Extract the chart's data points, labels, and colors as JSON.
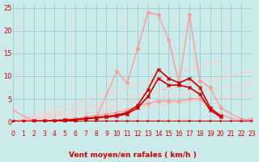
{
  "bg": "#cceaea",
  "grid_color": "#99cccc",
  "red_dark": "#cc0000",
  "red_mid": "#ff6666",
  "red_light": "#ffaaaa",
  "xlim": [
    0,
    23
  ],
  "ylim": [
    0,
    26
  ],
  "yticks": [
    0,
    5,
    10,
    15,
    20,
    25
  ],
  "xticks": [
    0,
    1,
    2,
    3,
    4,
    5,
    6,
    7,
    8,
    9,
    10,
    11,
    12,
    13,
    14,
    15,
    16,
    17,
    18,
    19,
    20,
    21,
    22,
    23
  ],
  "xlabel": "Vent moyen/en rafales ( km/h )",
  "series": [
    {
      "x": [
        0,
        23
      ],
      "y": [
        0,
        6.0
      ],
      "color": "#ffcccc",
      "lw": 0.9,
      "marker": "None",
      "ms": 0
    },
    {
      "x": [
        0,
        23
      ],
      "y": [
        0,
        8.5
      ],
      "color": "#ffcccc",
      "lw": 0.9,
      "marker": "None",
      "ms": 0
    },
    {
      "x": [
        0,
        23
      ],
      "y": [
        0,
        11.0
      ],
      "color": "#ffcccc",
      "lw": 0.9,
      "marker": "None",
      "ms": 0
    },
    {
      "x": [
        0,
        20
      ],
      "y": [
        0,
        13.5
      ],
      "color": "#ffcccc",
      "lw": 0.9,
      "marker": "None",
      "ms": 0
    },
    {
      "x": [
        0,
        1,
        2,
        3,
        4,
        5,
        6,
        7,
        8,
        9,
        10,
        11,
        12,
        13,
        14,
        15,
        16,
        17,
        18,
        19,
        20,
        22,
        23
      ],
      "y": [
        0.2,
        0.1,
        0.1,
        0.2,
        0.3,
        0.5,
        0.7,
        1.0,
        1.3,
        1.6,
        2.0,
        2.5,
        3.5,
        4.0,
        4.5,
        4.5,
        4.5,
        5.0,
        5.0,
        3.0,
        1.5,
        0.0,
        0.5
      ],
      "color": "#ff9999",
      "lw": 1.0,
      "marker": "D",
      "ms": 2.0
    },
    {
      "x": [
        0,
        2,
        4,
        6,
        8,
        10,
        11,
        12,
        13,
        14,
        15,
        16,
        17,
        18,
        19,
        20,
        22,
        23
      ],
      "y": [
        2.5,
        0.1,
        0.2,
        0.4,
        0.8,
        11.0,
        8.5,
        16.0,
        24.0,
        23.5,
        18.0,
        8.5,
        23.5,
        9.0,
        7.5,
        3.0,
        0.5,
        0.3
      ],
      "color": "#ff9999",
      "lw": 1.0,
      "marker": "D",
      "ms": 2.0
    },
    {
      "x": [
        0,
        1,
        2,
        3,
        4,
        5,
        6,
        7,
        8,
        9,
        10,
        11,
        12,
        13,
        14,
        15,
        16,
        17,
        18,
        19,
        20
      ],
      "y": [
        0.0,
        0.0,
        0.1,
        0.1,
        0.2,
        0.3,
        0.4,
        0.7,
        0.9,
        1.1,
        1.4,
        2.0,
        3.5,
        7.0,
        11.5,
        9.5,
        8.5,
        9.5,
        7.5,
        3.0,
        1.2
      ],
      "color": "#cc0000",
      "lw": 1.2,
      "marker": "x",
      "ms": 3.0
    },
    {
      "x": [
        0,
        1,
        2,
        3,
        4,
        5,
        6,
        7,
        8,
        9,
        10,
        11,
        12,
        13,
        14,
        15,
        16,
        17,
        18,
        19,
        20
      ],
      "y": [
        0.0,
        0.0,
        0.1,
        0.1,
        0.2,
        0.3,
        0.4,
        0.6,
        0.8,
        1.0,
        1.2,
        1.7,
        3.0,
        5.5,
        9.5,
        8.0,
        8.0,
        7.5,
        6.0,
        2.5,
        1.0
      ],
      "color": "#cc0000",
      "lw": 1.2,
      "marker": "x",
      "ms": 3.0
    }
  ]
}
